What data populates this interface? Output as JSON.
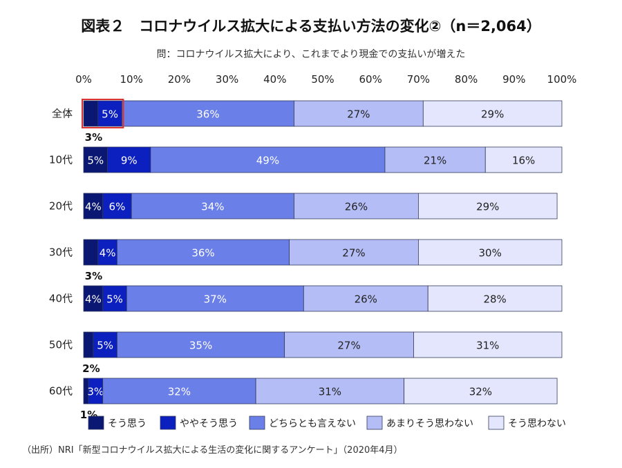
{
  "page": {
    "title": "図表２　コロナウイルス拡大による支払い方法の変化②（n＝2,064）",
    "subtitle": "問：コロナウイルス拡大により、これまでより現金での支払いが増えた",
    "source": "（出所）NRI「新型コロナウイルス拡大による生活の変化に関するアンケート」（2020年4月）"
  },
  "chart_data": {
    "type": "bar",
    "orientation": "horizontal-stacked-100",
    "categories": [
      "全体",
      "10代",
      "20代",
      "30代",
      "40代",
      "50代",
      "60代"
    ],
    "x_ticks": [
      "0%",
      "10%",
      "20%",
      "30%",
      "40%",
      "50%",
      "60%",
      "70%",
      "80%",
      "90%",
      "100%"
    ],
    "xlim": [
      0,
      100
    ],
    "legend_position": "bottom",
    "series": [
      {
        "name": "そう思う",
        "color": "#0a1873",
        "text_color": "#ffffff",
        "values": [
          3,
          5,
          4,
          3,
          4,
          2,
          1
        ],
        "labels": [
          "3%",
          "5%",
          "4%",
          "3%",
          "4%",
          "2%",
          "1%"
        ],
        "label_below": [
          true,
          false,
          false,
          true,
          false,
          true,
          true
        ]
      },
      {
        "name": "ややそう思う",
        "color": "#0c1fbf",
        "text_color": "#ffffff",
        "values": [
          5,
          9,
          6,
          4,
          5,
          5,
          3
        ],
        "labels": [
          "5%",
          "9%",
          "6%",
          "4%",
          "5%",
          "5%",
          "3%"
        ],
        "label_below": [
          false,
          false,
          false,
          false,
          false,
          false,
          false
        ]
      },
      {
        "name": "どちらとも言えない",
        "color": "#6b7fe8",
        "text_color": "#ffffff",
        "values": [
          36,
          49,
          34,
          36,
          37,
          35,
          32
        ],
        "labels": [
          "36%",
          "49%",
          "34%",
          "36%",
          "37%",
          "35%",
          "32%"
        ],
        "label_below": [
          false,
          false,
          false,
          false,
          false,
          false,
          false
        ]
      },
      {
        "name": "あまりそう思わない",
        "color": "#b4bdf5",
        "text_color": "#222222",
        "values": [
          27,
          21,
          26,
          27,
          26,
          27,
          31
        ],
        "labels": [
          "27%",
          "21%",
          "26%",
          "27%",
          "26%",
          "27%",
          "31%"
        ],
        "label_below": [
          false,
          false,
          false,
          false,
          false,
          false,
          false
        ]
      },
      {
        "name": "そう思わない",
        "color": "#e3e6fc",
        "text_color": "#222222",
        "values": [
          29,
          16,
          29,
          30,
          28,
          31,
          32
        ],
        "labels": [
          "29%",
          "16%",
          "29%",
          "30%",
          "28%",
          "31%",
          "32%"
        ],
        "label_below": [
          false,
          false,
          false,
          false,
          false,
          false,
          false
        ]
      }
    ],
    "highlight": {
      "category": "全体",
      "series": [
        "そう思う",
        "ややそう思う"
      ],
      "color": "#d93030"
    }
  }
}
